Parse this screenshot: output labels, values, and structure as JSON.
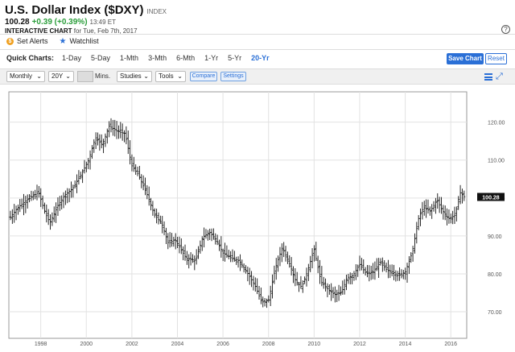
{
  "header": {
    "title": "U.S. Dollar Index ($DXY)",
    "index_tag": "INDEX",
    "price": "100.28",
    "change": "+0.39 (+0.39%)",
    "time": "13:49 ET",
    "chart_type_label": "INTERACTIVE CHART",
    "chart_date": "for Tue, Feb 7th, 2017",
    "help_icon": "?"
  },
  "actions": {
    "set_alerts": "Set Alerts",
    "watchlist": "Watchlist"
  },
  "quick_charts": {
    "label": "Quick Charts:",
    "items": [
      "1-Day",
      "5-Day",
      "1-Mth",
      "3-Mth",
      "6-Mth",
      "1-Yr",
      "5-Yr",
      "20-Yr"
    ],
    "active": "20-Yr",
    "save_label": "Save Chart",
    "reset_label": "Reset"
  },
  "toolbar": {
    "period": "Monthly",
    "range": "20Y",
    "mins_label": "Mins.",
    "studies": "Studies",
    "tools": "Tools",
    "compare": "Compare",
    "settings": "Settings"
  },
  "colors": {
    "accent": "#2a6fd6",
    "positive": "#2a9d3a",
    "bars": "#111111"
  },
  "chart_data": {
    "type": "bar",
    "style": "monthly OHLC bars",
    "x_ticks": [
      "1998",
      "2000",
      "2002",
      "2004",
      "2006",
      "2008",
      "2010",
      "2012",
      "2014",
      "2016"
    ],
    "y_ticks": [
      "70.00",
      "80.00",
      "90.00",
      "100.00",
      "110.00",
      "120.00"
    ],
    "ylim": [
      63,
      128
    ],
    "xlim": [
      1997.1,
      2017.2
    ],
    "last_value_label": "100.28",
    "last_value": 100.28,
    "grid": true,
    "series_closes": [
      [
        1997.17,
        95.0
      ],
      [
        1997.5,
        97.5
      ],
      [
        1997.9,
        99.5
      ],
      [
        1998.4,
        101.5
      ],
      [
        1998.7,
        96.0
      ],
      [
        1998.9,
        93.5
      ],
      [
        1999.3,
        98.5
      ],
      [
        1999.6,
        101.0
      ],
      [
        1999.9,
        102.5
      ],
      [
        2000.3,
        106.5
      ],
      [
        2000.6,
        110.0
      ],
      [
        2000.9,
        116.0
      ],
      [
        2001.2,
        114.0
      ],
      [
        2001.5,
        119.0
      ],
      [
        2001.9,
        117.5
      ],
      [
        2002.2,
        117.0
      ],
      [
        2002.5,
        108.5
      ],
      [
        2002.8,
        106.0
      ],
      [
        2003.2,
        100.5
      ],
      [
        2003.5,
        95.5
      ],
      [
        2003.8,
        93.5
      ],
      [
        2004.1,
        88.0
      ],
      [
        2004.4,
        89.0
      ],
      [
        2004.9,
        84.0
      ],
      [
        2005.3,
        83.5
      ],
      [
        2005.6,
        89.5
      ],
      [
        2005.9,
        91.0
      ],
      [
        2006.2,
        89.0
      ],
      [
        2006.5,
        85.5
      ],
      [
        2006.9,
        84.0
      ],
      [
        2007.2,
        83.5
      ],
      [
        2007.6,
        80.0
      ],
      [
        2007.9,
        77.0
      ],
      [
        2008.2,
        72.5
      ],
      [
        2008.5,
        73.0
      ],
      [
        2008.8,
        81.5
      ],
      [
        2009.1,
        87.0
      ],
      [
        2009.4,
        83.0
      ],
      [
        2009.7,
        78.0
      ],
      [
        2009.95,
        76.5
      ],
      [
        2010.2,
        80.5
      ],
      [
        2010.5,
        86.5
      ],
      [
        2010.8,
        78.0
      ],
      [
        2011.1,
        76.0
      ],
      [
        2011.4,
        74.5
      ],
      [
        2011.7,
        75.0
      ],
      [
        2011.95,
        79.0
      ],
      [
        2012.2,
        79.5
      ],
      [
        2012.5,
        82.5
      ],
      [
        2012.8,
        80.0
      ],
      [
        2013.1,
        80.5
      ],
      [
        2013.4,
        83.0
      ],
      [
        2013.7,
        81.0
      ],
      [
        2013.95,
        80.5
      ],
      [
        2014.2,
        79.5
      ],
      [
        2014.5,
        80.5
      ],
      [
        2014.8,
        85.5
      ],
      [
        2015.1,
        95.0
      ],
      [
        2015.3,
        97.5
      ],
      [
        2015.6,
        96.5
      ],
      [
        2015.9,
        99.5
      ],
      [
        2016.1,
        97.0
      ],
      [
        2016.4,
        94.5
      ],
      [
        2016.7,
        95.5
      ],
      [
        2016.9,
        101.5
      ],
      [
        2017.1,
        100.28
      ]
    ]
  }
}
